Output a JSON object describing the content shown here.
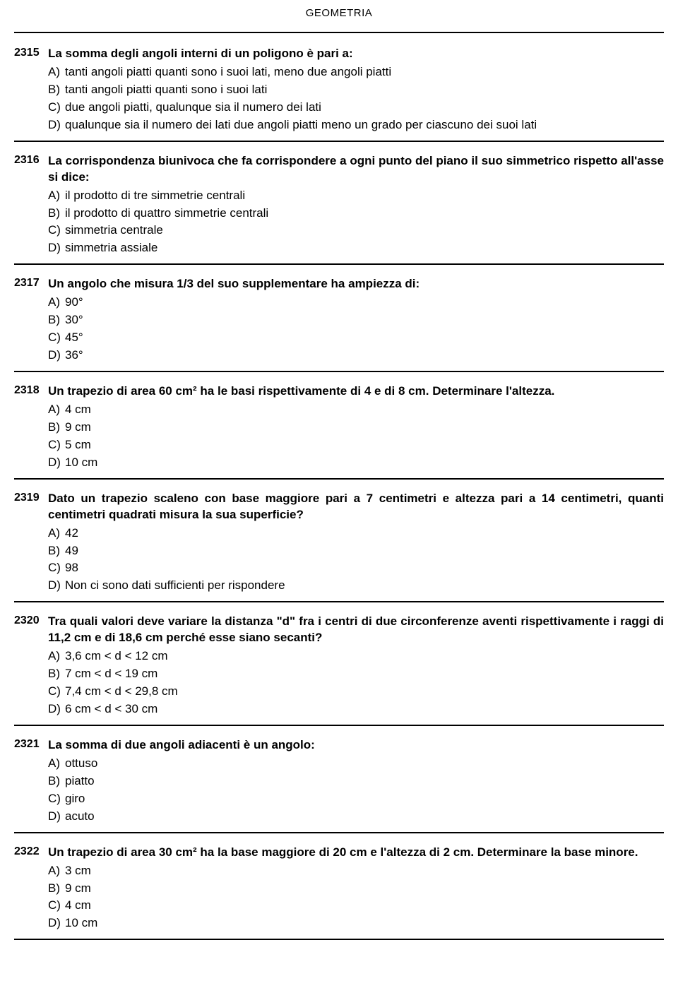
{
  "page_title": "GEOMETRIA",
  "questions": [
    {
      "number": "2315",
      "text": "La somma degli angoli interni di un poligono è pari a:",
      "options": [
        {
          "letter": "A)",
          "text": "tanti angoli piatti quanti sono i suoi lati, meno due angoli piatti"
        },
        {
          "letter": "B)",
          "text": "tanti angoli piatti quanti sono i suoi lati"
        },
        {
          "letter": "C)",
          "text": "due angoli piatti, qualunque sia il numero dei lati"
        },
        {
          "letter": "D)",
          "text": "qualunque sia il numero dei lati due angoli piatti meno un grado per ciascuno dei suoi lati"
        }
      ]
    },
    {
      "number": "2316",
      "text": "La corrispondenza biunivoca che fa corrispondere a ogni punto del piano il suo simmetrico rispetto all'asse si dice:",
      "options": [
        {
          "letter": "A)",
          "text": "il prodotto di tre simmetrie centrali"
        },
        {
          "letter": "B)",
          "text": "il prodotto di quattro simmetrie centrali"
        },
        {
          "letter": "C)",
          "text": "simmetria centrale"
        },
        {
          "letter": "D)",
          "text": "simmetria assiale"
        }
      ]
    },
    {
      "number": "2317",
      "text": "Un angolo che misura 1/3 del suo supplementare ha ampiezza di:",
      "options": [
        {
          "letter": "A)",
          "text": "90°"
        },
        {
          "letter": "B)",
          "text": "30°"
        },
        {
          "letter": "C)",
          "text": "45°"
        },
        {
          "letter": "D)",
          "text": "36°"
        }
      ]
    },
    {
      "number": "2318",
      "text": "Un trapezio di area 60 cm² ha le basi rispettivamente di 4 e di 8 cm. Determinare l'altezza.",
      "options": [
        {
          "letter": "A)",
          "text": "4 cm"
        },
        {
          "letter": "B)",
          "text": "9 cm"
        },
        {
          "letter": "C)",
          "text": "5 cm"
        },
        {
          "letter": "D)",
          "text": "10 cm"
        }
      ]
    },
    {
      "number": "2319",
      "text": "Dato un trapezio scaleno con base maggiore pari a 7 centimetri e altezza pari a 14 centimetri, quanti centimetri quadrati misura la sua superficie?",
      "options": [
        {
          "letter": "A)",
          "text": "42"
        },
        {
          "letter": "B)",
          "text": "49"
        },
        {
          "letter": "C)",
          "text": "98"
        },
        {
          "letter": "D)",
          "text": "Non ci sono dati sufficienti per rispondere"
        }
      ]
    },
    {
      "number": "2320",
      "text": "Tra quali valori deve variare la distanza \"d\" fra i centri di due circonferenze aventi rispettivamente i raggi di 11,2 cm e di 18,6 cm perché esse siano secanti?",
      "options": [
        {
          "letter": "A)",
          "text": "3,6 cm < d < 12 cm"
        },
        {
          "letter": "B)",
          "text": "7 cm < d < 19 cm"
        },
        {
          "letter": "C)",
          "text": "7,4 cm < d < 29,8 cm"
        },
        {
          "letter": "D)",
          "text": "6 cm < d < 30 cm"
        }
      ]
    },
    {
      "number": "2321",
      "text": "La somma di due angoli adiacenti è un angolo:",
      "options": [
        {
          "letter": "A)",
          "text": "ottuso"
        },
        {
          "letter": "B)",
          "text": "piatto"
        },
        {
          "letter": "C)",
          "text": "giro"
        },
        {
          "letter": "D)",
          "text": "acuto"
        }
      ]
    },
    {
      "number": "2322",
      "text": "Un trapezio di area 30 cm² ha la base maggiore di 20 cm e l'altezza di 2 cm. Determinare la base minore.",
      "options": [
        {
          "letter": "A)",
          "text": "3 cm"
        },
        {
          "letter": "B)",
          "text": "9 cm"
        },
        {
          "letter": "C)",
          "text": "4 cm"
        },
        {
          "letter": "D)",
          "text": "10 cm"
        }
      ]
    }
  ]
}
